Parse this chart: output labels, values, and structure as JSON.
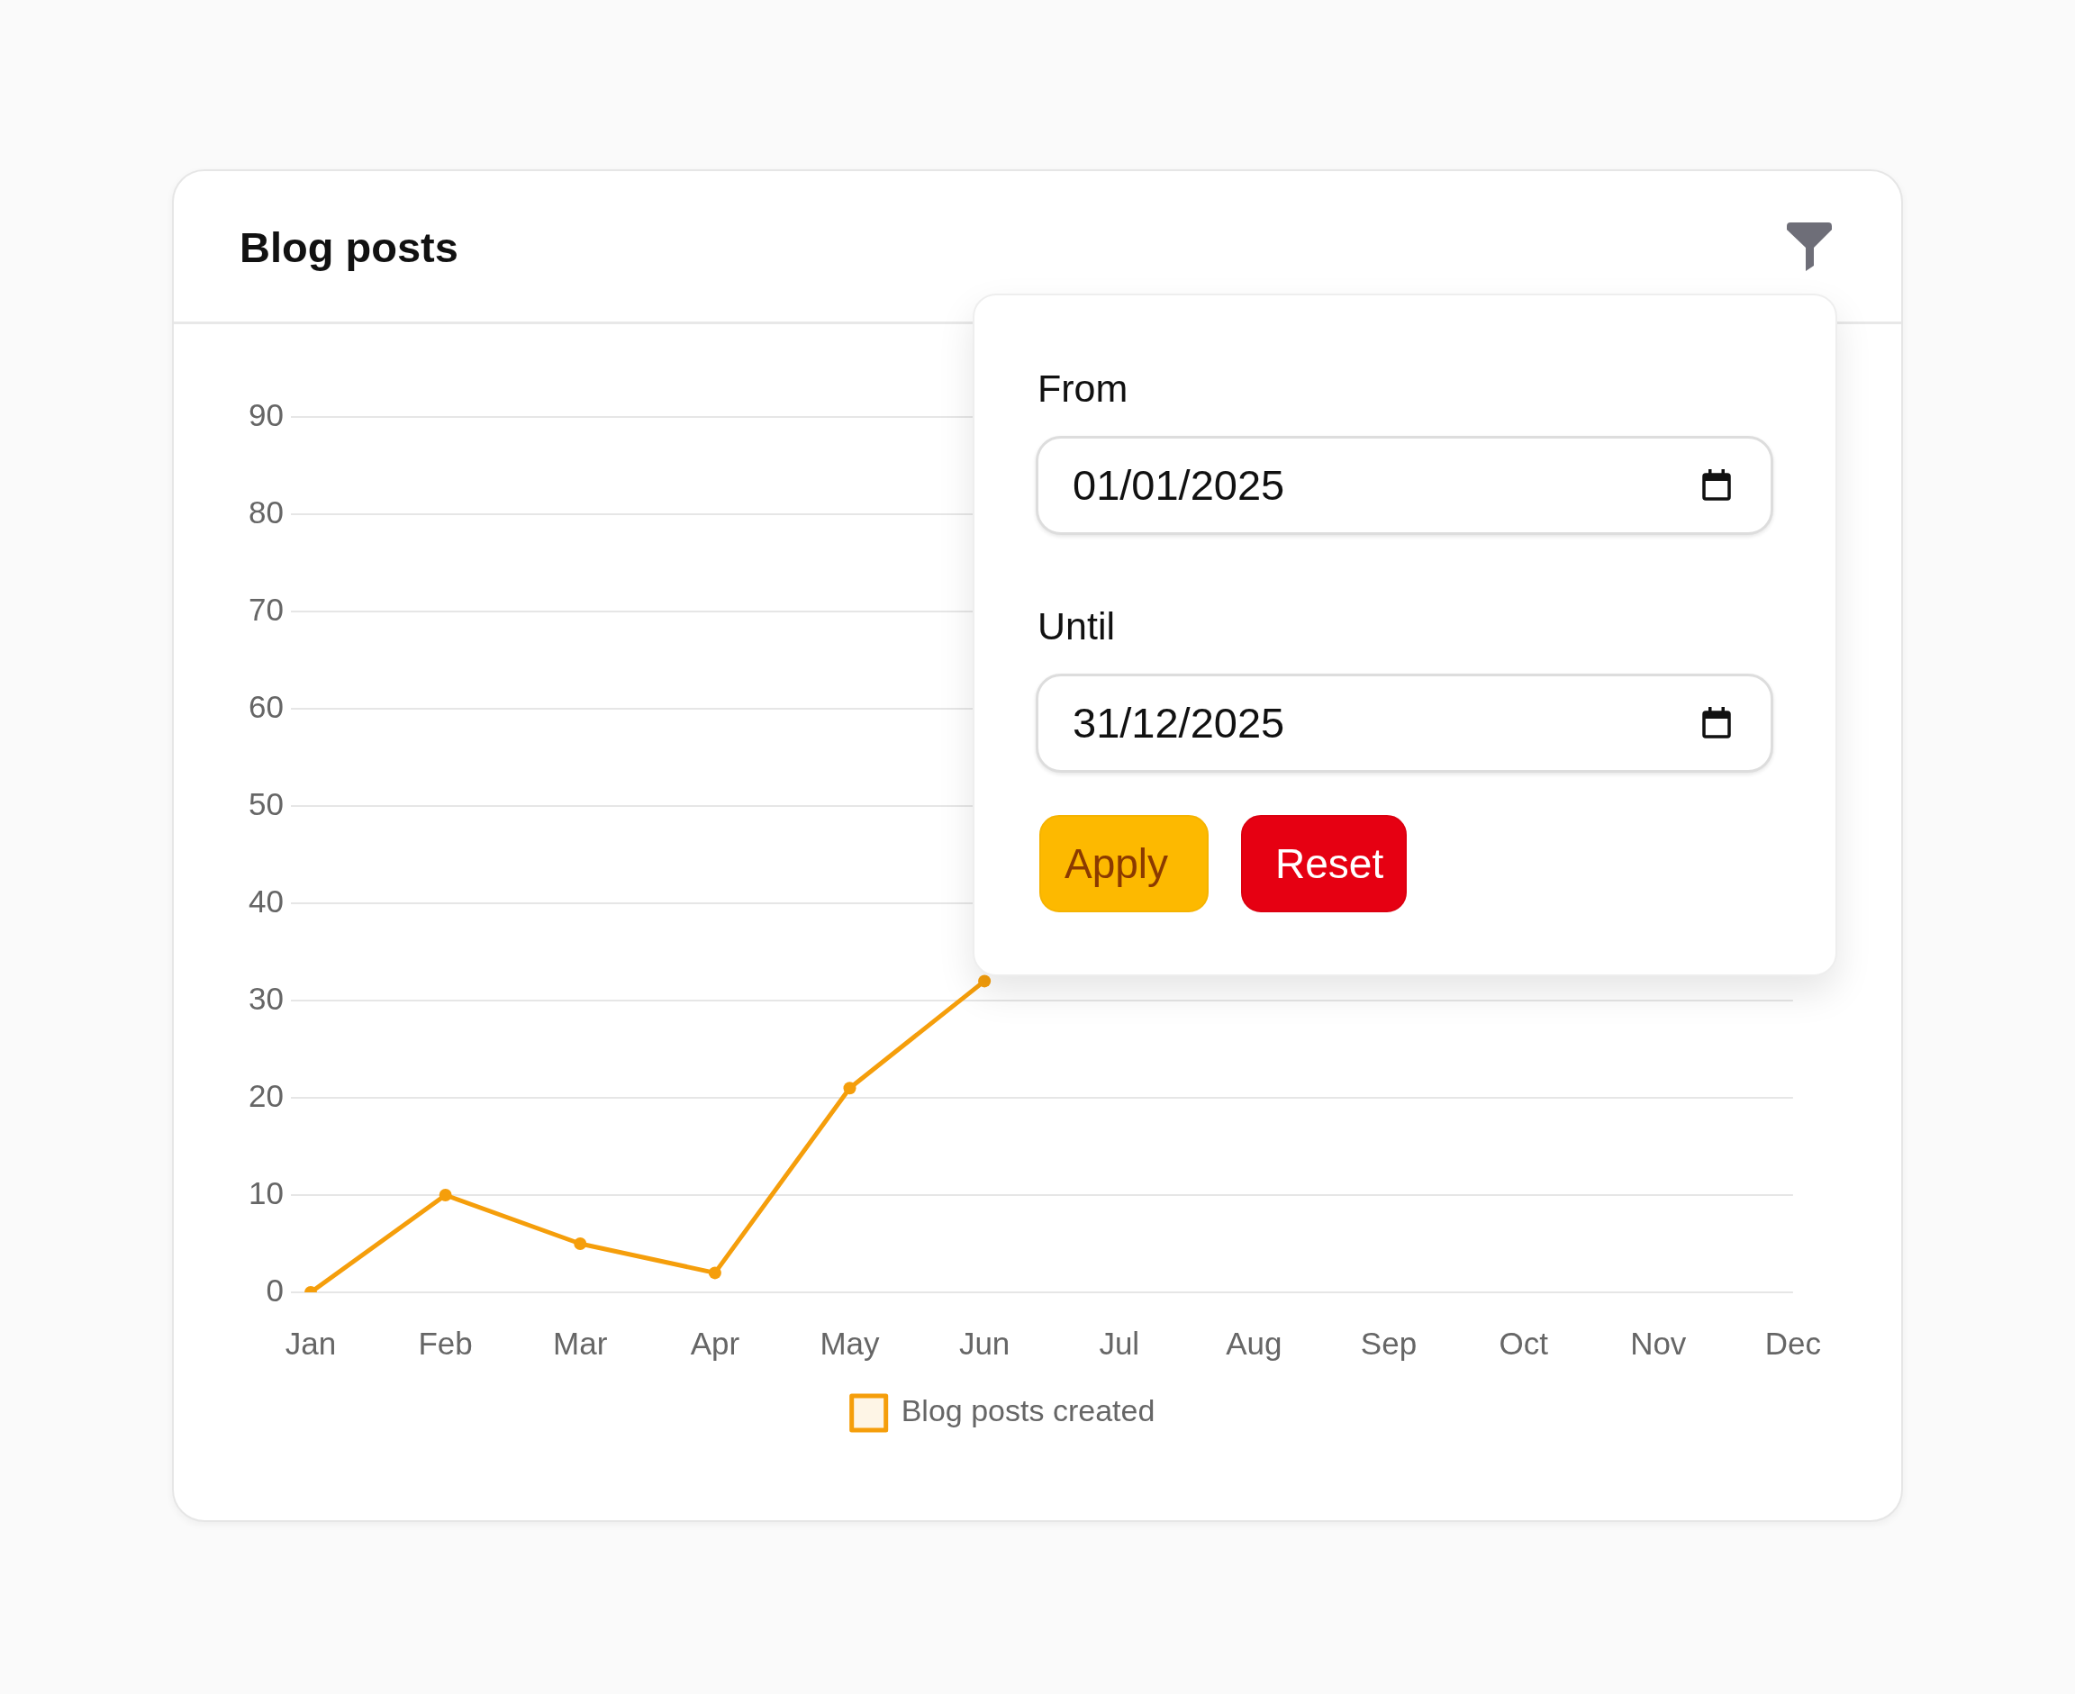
{
  "chart_data": {
    "type": "line",
    "title": "Blog posts",
    "categories": [
      "Jan",
      "Feb",
      "Mar",
      "Apr",
      "May",
      "Jun",
      "Jul",
      "Aug",
      "Sep",
      "Oct",
      "Nov",
      "Dec"
    ],
    "series": [
      {
        "name": "Blog posts created",
        "color": "#f59e0b",
        "values": [
          0,
          10,
          5,
          2,
          21,
          32,
          null,
          null,
          null,
          null,
          null,
          null
        ]
      }
    ],
    "ylim": [
      0,
      90
    ],
    "yticks": [
      0,
      10,
      20,
      30,
      40,
      50,
      60,
      70,
      80,
      90
    ],
    "grid": "y",
    "legend": "bottom",
    "marker": "circle",
    "line_style": "solid",
    "annotations": [
      "From",
      "01/01/2025",
      "Until",
      "31/12/2025",
      "Apply",
      "Reset"
    ]
  }
}
